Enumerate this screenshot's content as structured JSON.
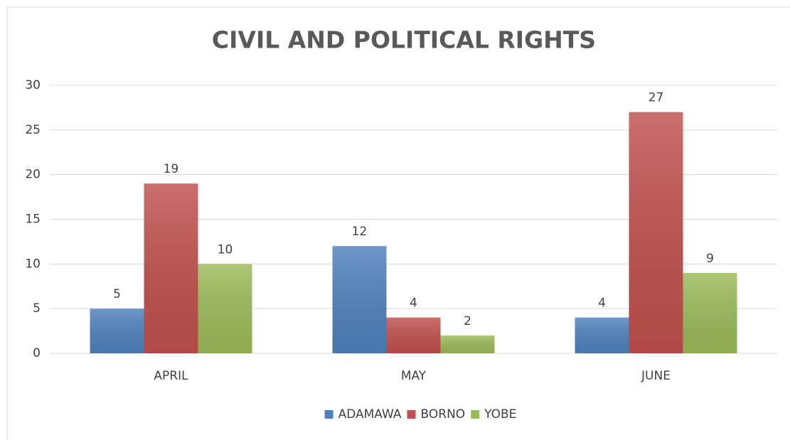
{
  "chart_data": {
    "type": "bar",
    "title": "CIVIL AND POLITICAL RIGHTS",
    "categories": [
      "APRIL",
      "MAY",
      "JUNE"
    ],
    "series": [
      {
        "name": "ADAMAWA",
        "color": "#4f81bd",
        "values": [
          5,
          12,
          4
        ]
      },
      {
        "name": "BORNO",
        "color": "#c0504d",
        "values": [
          19,
          4,
          27
        ]
      },
      {
        "name": "YOBE",
        "color": "#9bbb59",
        "values": [
          10,
          2,
          9
        ]
      }
    ],
    "ylim": [
      0,
      30
    ],
    "yticks": [
      0,
      5,
      10,
      15,
      20,
      25,
      30
    ],
    "grid": true,
    "legend": "bottom"
  }
}
